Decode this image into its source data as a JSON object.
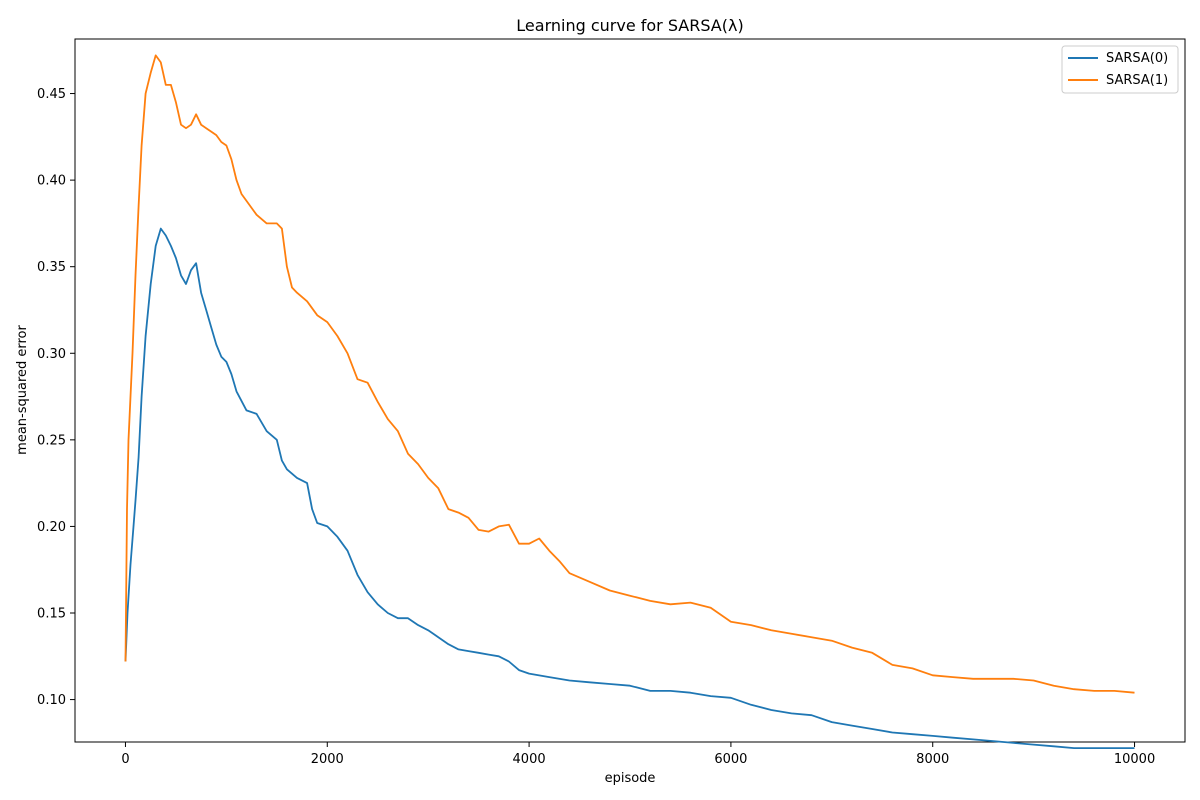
{
  "chart_data": {
    "type": "line",
    "title": "Learning curve for SARSA(λ)",
    "xlabel": "episode",
    "ylabel": "mean-squared error",
    "xlim": [
      -500,
      10500
    ],
    "ylim": [
      0.0755,
      0.4815
    ],
    "xticks": [
      0,
      2000,
      4000,
      6000,
      8000,
      10000
    ],
    "xtick_labels": [
      "0",
      "2000",
      "4000",
      "6000",
      "8000",
      "10000"
    ],
    "yticks": [
      0.1,
      0.15,
      0.2,
      0.25,
      0.3,
      0.35,
      0.4,
      0.45
    ],
    "ytick_labels": [
      "0.10",
      "0.15",
      "0.20",
      "0.25",
      "0.30",
      "0.35",
      "0.40",
      "0.45"
    ],
    "grid": false,
    "legend_position": "top-right",
    "series": [
      {
        "name": "SARSA(0)",
        "color": "#1f77b4",
        "points": [
          [
            0,
            0.122
          ],
          [
            20,
            0.15
          ],
          [
            50,
            0.178
          ],
          [
            80,
            0.2
          ],
          [
            100,
            0.215
          ],
          [
            130,
            0.24
          ],
          [
            160,
            0.275
          ],
          [
            200,
            0.31
          ],
          [
            250,
            0.34
          ],
          [
            300,
            0.362
          ],
          [
            350,
            0.372
          ],
          [
            400,
            0.368
          ],
          [
            450,
            0.362
          ],
          [
            500,
            0.355
          ],
          [
            550,
            0.345
          ],
          [
            600,
            0.34
          ],
          [
            650,
            0.348
          ],
          [
            700,
            0.352
          ],
          [
            750,
            0.335
          ],
          [
            800,
            0.325
          ],
          [
            850,
            0.315
          ],
          [
            900,
            0.305
          ],
          [
            950,
            0.298
          ],
          [
            1000,
            0.295
          ],
          [
            1050,
            0.288
          ],
          [
            1100,
            0.278
          ],
          [
            1200,
            0.267
          ],
          [
            1300,
            0.265
          ],
          [
            1400,
            0.255
          ],
          [
            1500,
            0.25
          ],
          [
            1550,
            0.238
          ],
          [
            1600,
            0.233
          ],
          [
            1700,
            0.228
          ],
          [
            1800,
            0.225
          ],
          [
            1850,
            0.21
          ],
          [
            1900,
            0.202
          ],
          [
            2000,
            0.2
          ],
          [
            2100,
            0.194
          ],
          [
            2200,
            0.186
          ],
          [
            2300,
            0.172
          ],
          [
            2400,
            0.162
          ],
          [
            2500,
            0.155
          ],
          [
            2600,
            0.15
          ],
          [
            2700,
            0.147
          ],
          [
            2800,
            0.147
          ],
          [
            2900,
            0.143
          ],
          [
            3000,
            0.14
          ],
          [
            3100,
            0.136
          ],
          [
            3200,
            0.132
          ],
          [
            3300,
            0.129
          ],
          [
            3400,
            0.128
          ],
          [
            3500,
            0.127
          ],
          [
            3600,
            0.126
          ],
          [
            3700,
            0.125
          ],
          [
            3800,
            0.122
          ],
          [
            3900,
            0.117
          ],
          [
            4000,
            0.115
          ],
          [
            4200,
            0.113
          ],
          [
            4400,
            0.111
          ],
          [
            4600,
            0.11
          ],
          [
            4800,
            0.109
          ],
          [
            5000,
            0.108
          ],
          [
            5200,
            0.105
          ],
          [
            5400,
            0.105
          ],
          [
            5600,
            0.104
          ],
          [
            5800,
            0.102
          ],
          [
            6000,
            0.101
          ],
          [
            6200,
            0.097
          ],
          [
            6400,
            0.094
          ],
          [
            6600,
            0.092
          ],
          [
            6800,
            0.091
          ],
          [
            7000,
            0.087
          ],
          [
            7200,
            0.085
          ],
          [
            7400,
            0.083
          ],
          [
            7600,
            0.081
          ],
          [
            7800,
            0.08
          ],
          [
            8000,
            0.079
          ],
          [
            8200,
            0.078
          ],
          [
            8400,
            0.077
          ],
          [
            8600,
            0.076
          ],
          [
            8800,
            0.075
          ],
          [
            9000,
            0.074
          ],
          [
            9200,
            0.073
          ],
          [
            9400,
            0.072
          ],
          [
            9600,
            0.072
          ],
          [
            9800,
            0.072
          ],
          [
            10000,
            0.072
          ]
        ]
      },
      {
        "name": "SARSA(1)",
        "color": "#ff7f0e",
        "points": [
          [
            0,
            0.122
          ],
          [
            15,
            0.21
          ],
          [
            30,
            0.25
          ],
          [
            50,
            0.275
          ],
          [
            70,
            0.3
          ],
          [
            100,
            0.345
          ],
          [
            130,
            0.385
          ],
          [
            160,
            0.42
          ],
          [
            200,
            0.45
          ],
          [
            250,
            0.462
          ],
          [
            300,
            0.472
          ],
          [
            350,
            0.468
          ],
          [
            400,
            0.455
          ],
          [
            450,
            0.455
          ],
          [
            500,
            0.445
          ],
          [
            550,
            0.432
          ],
          [
            600,
            0.43
          ],
          [
            650,
            0.432
          ],
          [
            700,
            0.438
          ],
          [
            750,
            0.432
          ],
          [
            800,
            0.43
          ],
          [
            850,
            0.428
          ],
          [
            900,
            0.426
          ],
          [
            950,
            0.422
          ],
          [
            1000,
            0.42
          ],
          [
            1050,
            0.412
          ],
          [
            1100,
            0.4
          ],
          [
            1150,
            0.392
          ],
          [
            1200,
            0.388
          ],
          [
            1300,
            0.38
          ],
          [
            1400,
            0.375
          ],
          [
            1500,
            0.375
          ],
          [
            1550,
            0.372
          ],
          [
            1600,
            0.35
          ],
          [
            1650,
            0.338
          ],
          [
            1700,
            0.335
          ],
          [
            1800,
            0.33
          ],
          [
            1900,
            0.322
          ],
          [
            2000,
            0.318
          ],
          [
            2100,
            0.31
          ],
          [
            2200,
            0.3
          ],
          [
            2300,
            0.285
          ],
          [
            2400,
            0.283
          ],
          [
            2500,
            0.272
          ],
          [
            2600,
            0.262
          ],
          [
            2700,
            0.255
          ],
          [
            2800,
            0.242
          ],
          [
            2900,
            0.236
          ],
          [
            3000,
            0.228
          ],
          [
            3100,
            0.222
          ],
          [
            3200,
            0.21
          ],
          [
            3300,
            0.208
          ],
          [
            3400,
            0.205
          ],
          [
            3500,
            0.198
          ],
          [
            3600,
            0.197
          ],
          [
            3700,
            0.2
          ],
          [
            3800,
            0.201
          ],
          [
            3900,
            0.19
          ],
          [
            4000,
            0.19
          ],
          [
            4100,
            0.193
          ],
          [
            4200,
            0.186
          ],
          [
            4300,
            0.18
          ],
          [
            4400,
            0.173
          ],
          [
            4600,
            0.168
          ],
          [
            4800,
            0.163
          ],
          [
            5000,
            0.16
          ],
          [
            5200,
            0.157
          ],
          [
            5400,
            0.155
          ],
          [
            5600,
            0.156
          ],
          [
            5800,
            0.153
          ],
          [
            6000,
            0.145
          ],
          [
            6200,
            0.143
          ],
          [
            6400,
            0.14
          ],
          [
            6600,
            0.138
          ],
          [
            6800,
            0.136
          ],
          [
            7000,
            0.134
          ],
          [
            7200,
            0.13
          ],
          [
            7400,
            0.127
          ],
          [
            7600,
            0.12
          ],
          [
            7800,
            0.118
          ],
          [
            8000,
            0.114
          ],
          [
            8200,
            0.113
          ],
          [
            8400,
            0.112
          ],
          [
            8600,
            0.112
          ],
          [
            8800,
            0.112
          ],
          [
            9000,
            0.111
          ],
          [
            9200,
            0.108
          ],
          [
            9400,
            0.106
          ],
          [
            9600,
            0.105
          ],
          [
            9800,
            0.105
          ],
          [
            10000,
            0.104
          ]
        ]
      }
    ]
  }
}
